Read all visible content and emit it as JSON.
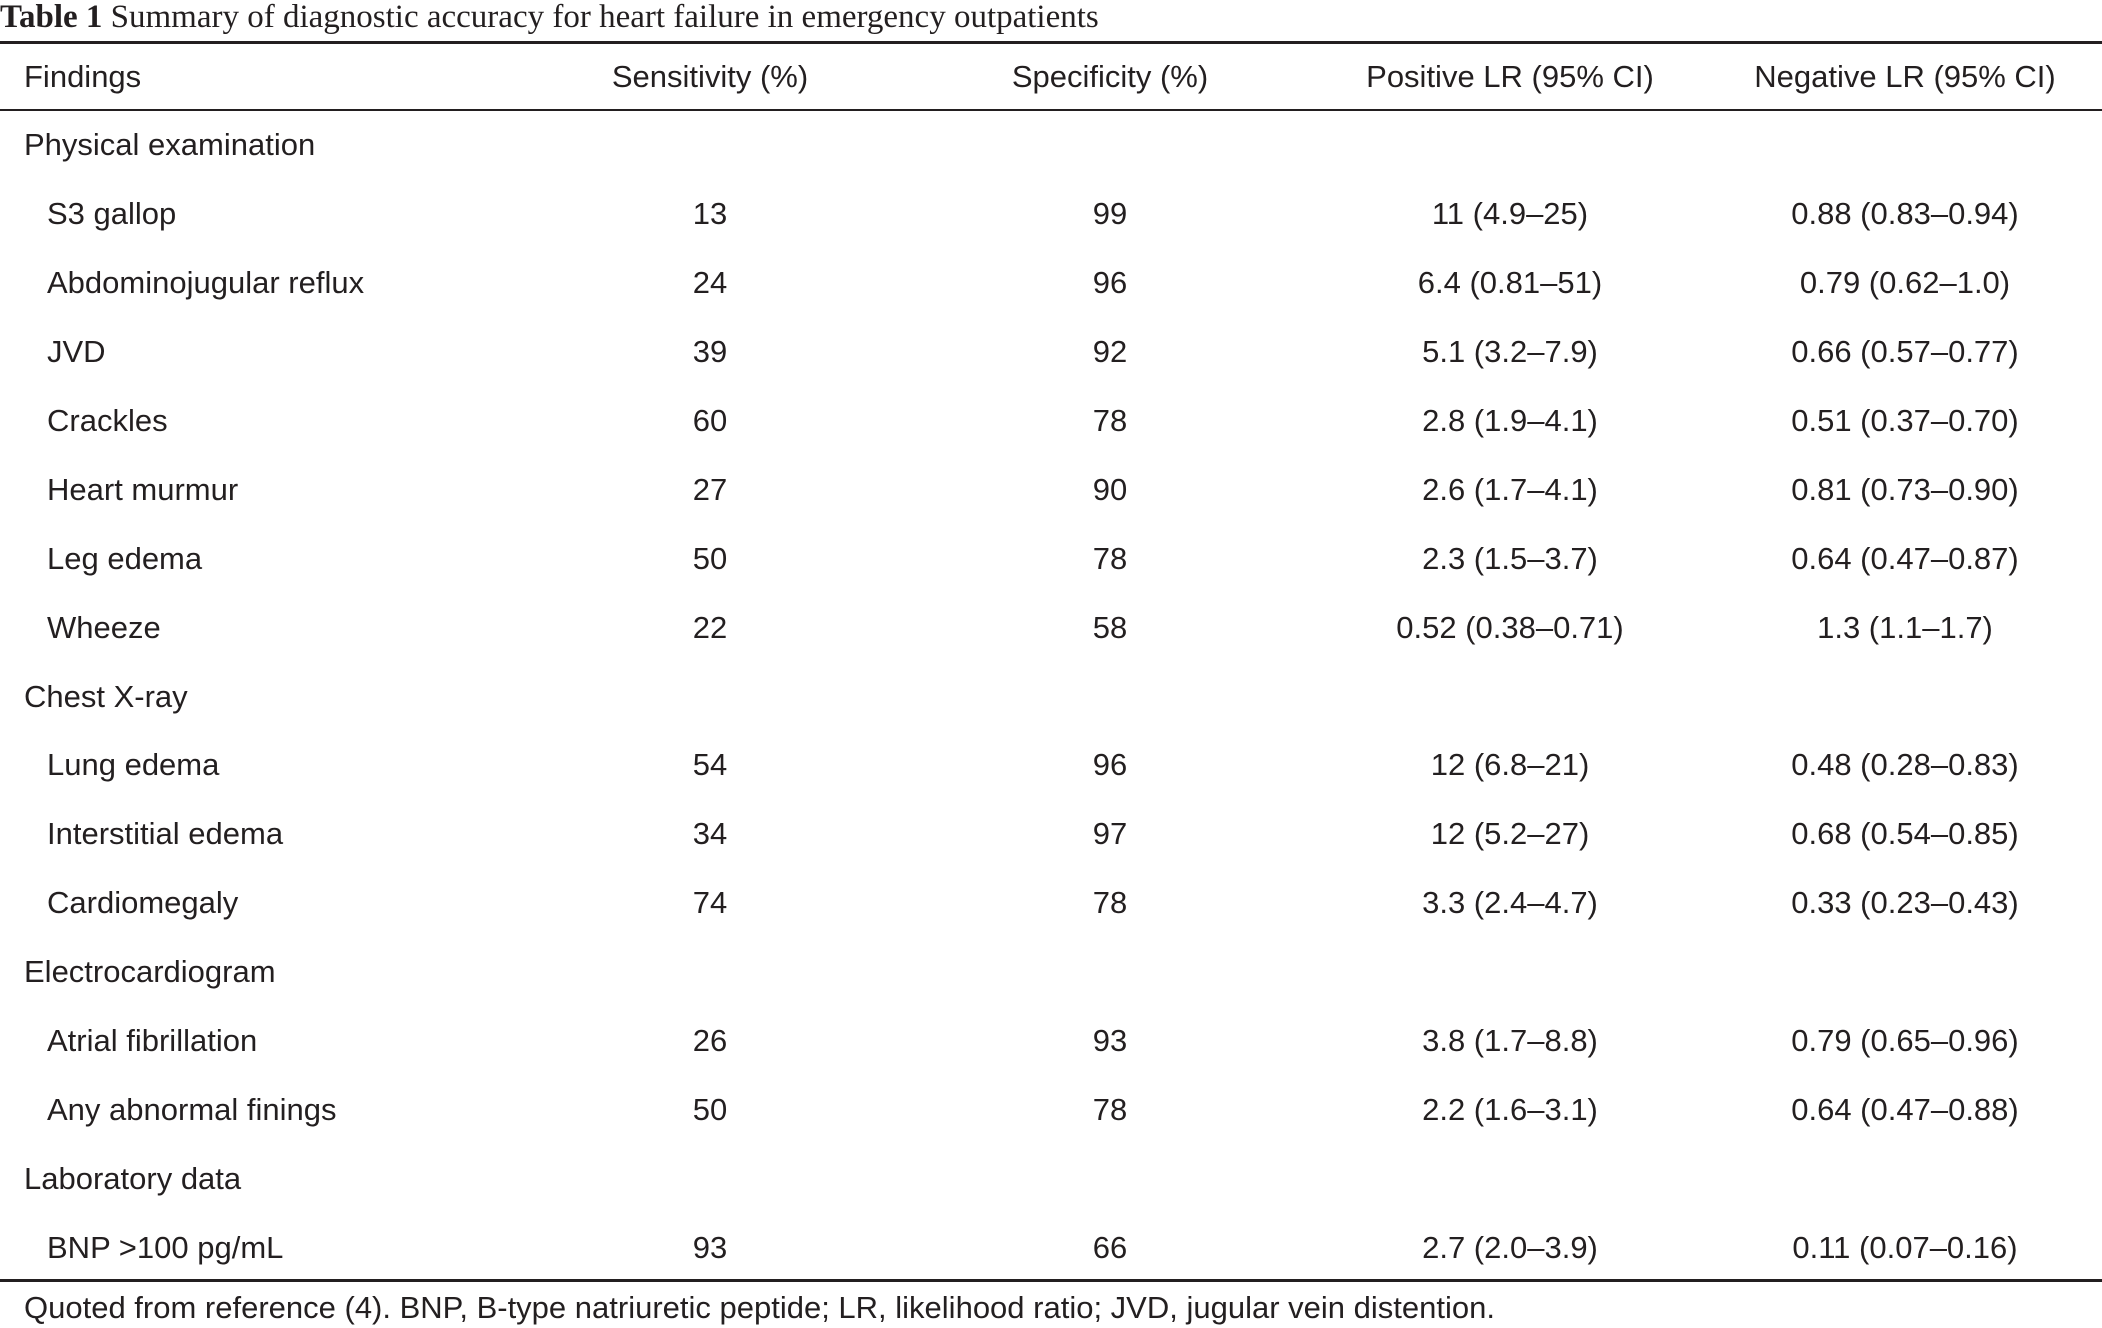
{
  "caption": {
    "label": "Table 1",
    "text": "Summary of diagnostic accuracy for heart failure in emergency outpatients"
  },
  "headers": [
    "Findings",
    "Sensitivity (%)",
    "Specificity (%)",
    "Positive LR (95% CI)",
    "Negative LR (95% CI)"
  ],
  "rows": [
    {
      "type": "section",
      "label": "Physical examination"
    },
    {
      "type": "item",
      "finding": "S3 gallop",
      "sensitivity": "13",
      "specificity": "99",
      "plr": "11 (4.9–25)",
      "nlr": "0.88 (0.83–0.94)"
    },
    {
      "type": "item",
      "finding": "Abdominojugular reflux",
      "sensitivity": "24",
      "specificity": "96",
      "plr": "6.4 (0.81–51)",
      "nlr": "0.79 (0.62–1.0)"
    },
    {
      "type": "item",
      "finding": "JVD",
      "sensitivity": "39",
      "specificity": "92",
      "plr": "5.1 (3.2–7.9)",
      "nlr": "0.66 (0.57–0.77)"
    },
    {
      "type": "item",
      "finding": "Crackles",
      "sensitivity": "60",
      "specificity": "78",
      "plr": "2.8 (1.9–4.1)",
      "nlr": "0.51 (0.37–0.70)"
    },
    {
      "type": "item",
      "finding": "Heart murmur",
      "sensitivity": "27",
      "specificity": "90",
      "plr": "2.6 (1.7–4.1)",
      "nlr": "0.81 (0.73–0.90)"
    },
    {
      "type": "item",
      "finding": "Leg edema",
      "sensitivity": "50",
      "specificity": "78",
      "plr": "2.3 (1.5–3.7)",
      "nlr": "0.64 (0.47–0.87)"
    },
    {
      "type": "item",
      "finding": "Wheeze",
      "sensitivity": "22",
      "specificity": "58",
      "plr": "0.52 (0.38–0.71)",
      "nlr": "1.3 (1.1–1.7)"
    },
    {
      "type": "section",
      "label": "Chest X-ray"
    },
    {
      "type": "item",
      "finding": "Lung edema",
      "sensitivity": "54",
      "specificity": "96",
      "plr": "12 (6.8–21)",
      "nlr": "0.48 (0.28–0.83)"
    },
    {
      "type": "item",
      "finding": "Interstitial edema",
      "sensitivity": "34",
      "specificity": "97",
      "plr": "12 (5.2–27)",
      "nlr": "0.68 (0.54–0.85)"
    },
    {
      "type": "item",
      "finding": "Cardiomegaly",
      "sensitivity": "74",
      "specificity": "78",
      "plr": "3.3 (2.4–4.7)",
      "nlr": "0.33 (0.23–0.43)"
    },
    {
      "type": "section",
      "label": "Electrocardiogram"
    },
    {
      "type": "item",
      "finding": "Atrial fibrillation",
      "sensitivity": "26",
      "specificity": "93",
      "plr": "3.8 (1.7–8.8)",
      "nlr": "0.79 (0.65–0.96)"
    },
    {
      "type": "item",
      "finding": "Any abnormal finings",
      "sensitivity": "50",
      "specificity": "78",
      "plr": "2.2 (1.6–3.1)",
      "nlr": "0.64 (0.47–0.88)"
    },
    {
      "type": "section",
      "label": "Laboratory data"
    },
    {
      "type": "item",
      "finding": "BNP >100 pg/mL",
      "sensitivity": "93",
      "specificity": "66",
      "plr": "2.7 (2.0–3.9)",
      "nlr": "0.11 (0.07–0.16)"
    }
  ],
  "footnote": "Quoted from reference (4). BNP, B-type natriuretic peptide; LR, likelihood ratio; JVD, jugular vein distention."
}
